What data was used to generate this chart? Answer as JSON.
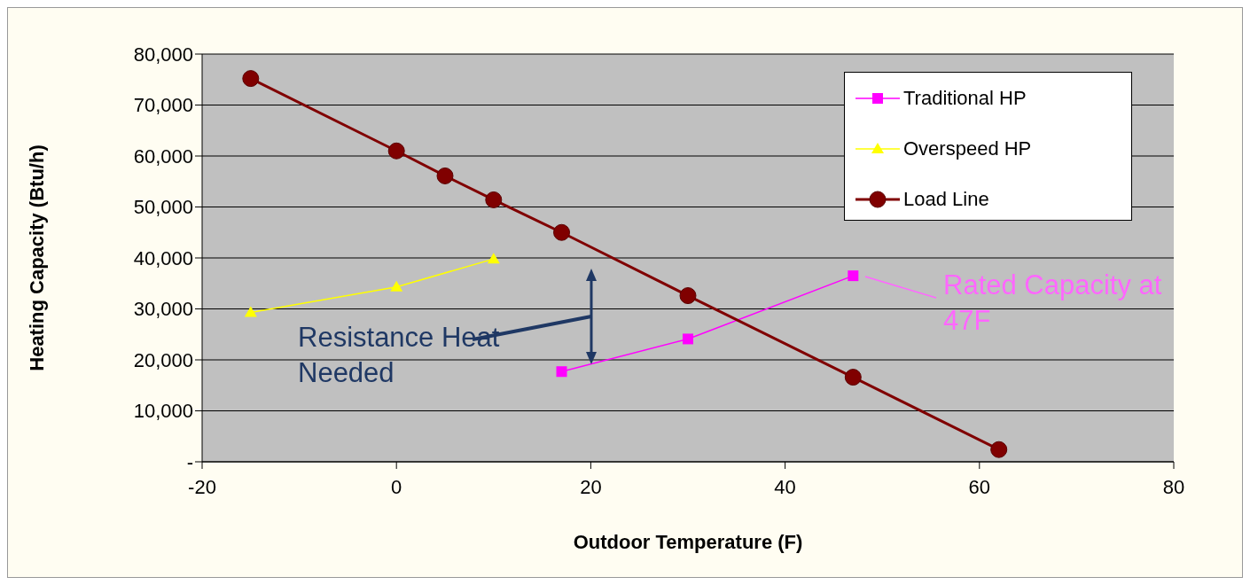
{
  "chart_data": {
    "type": "line",
    "xlabel": "Outdoor Temperature (F)",
    "ylabel": "Heating Capacity (Btu/h)",
    "xlim": [
      -20,
      80
    ],
    "xticks": [
      -20,
      0,
      20,
      40,
      60,
      80
    ],
    "ylim": [
      0,
      80000
    ],
    "yticks": [
      {
        "value": 0,
        "label": "-"
      },
      {
        "value": 10000,
        "label": "10,000"
      },
      {
        "value": 20000,
        "label": "20,000"
      },
      {
        "value": 30000,
        "label": "30,000"
      },
      {
        "value": 40000,
        "label": "40,000"
      },
      {
        "value": 50000,
        "label": "50,000"
      },
      {
        "value": 60000,
        "label": "60,000"
      },
      {
        "value": 70000,
        "label": "70,000"
      },
      {
        "value": 80000,
        "label": "80,000"
      }
    ],
    "grid": "y",
    "legend": "top right",
    "series": [
      {
        "name": "Traditional HP",
        "color": "#ff00ff",
        "marker": "square",
        "x": [
          17,
          30,
          47
        ],
        "values": [
          17700,
          24100,
          36500
        ]
      },
      {
        "name": "Overspeed HP",
        "color": "#ffff00",
        "marker": "triangle",
        "x": [
          -15,
          0,
          10
        ],
        "values": [
          29300,
          34300,
          39800
        ]
      },
      {
        "name": "Load Line",
        "color": "#800000",
        "marker": "circle",
        "x": [
          -15,
          0,
          5,
          10,
          17,
          30,
          47,
          62
        ],
        "values": [
          75200,
          61000,
          56100,
          51400,
          45000,
          32600,
          16600,
          2400
        ]
      }
    ],
    "annotations": [
      "Resistance Heat Needed",
      "Rated Capacity at 47F"
    ]
  }
}
